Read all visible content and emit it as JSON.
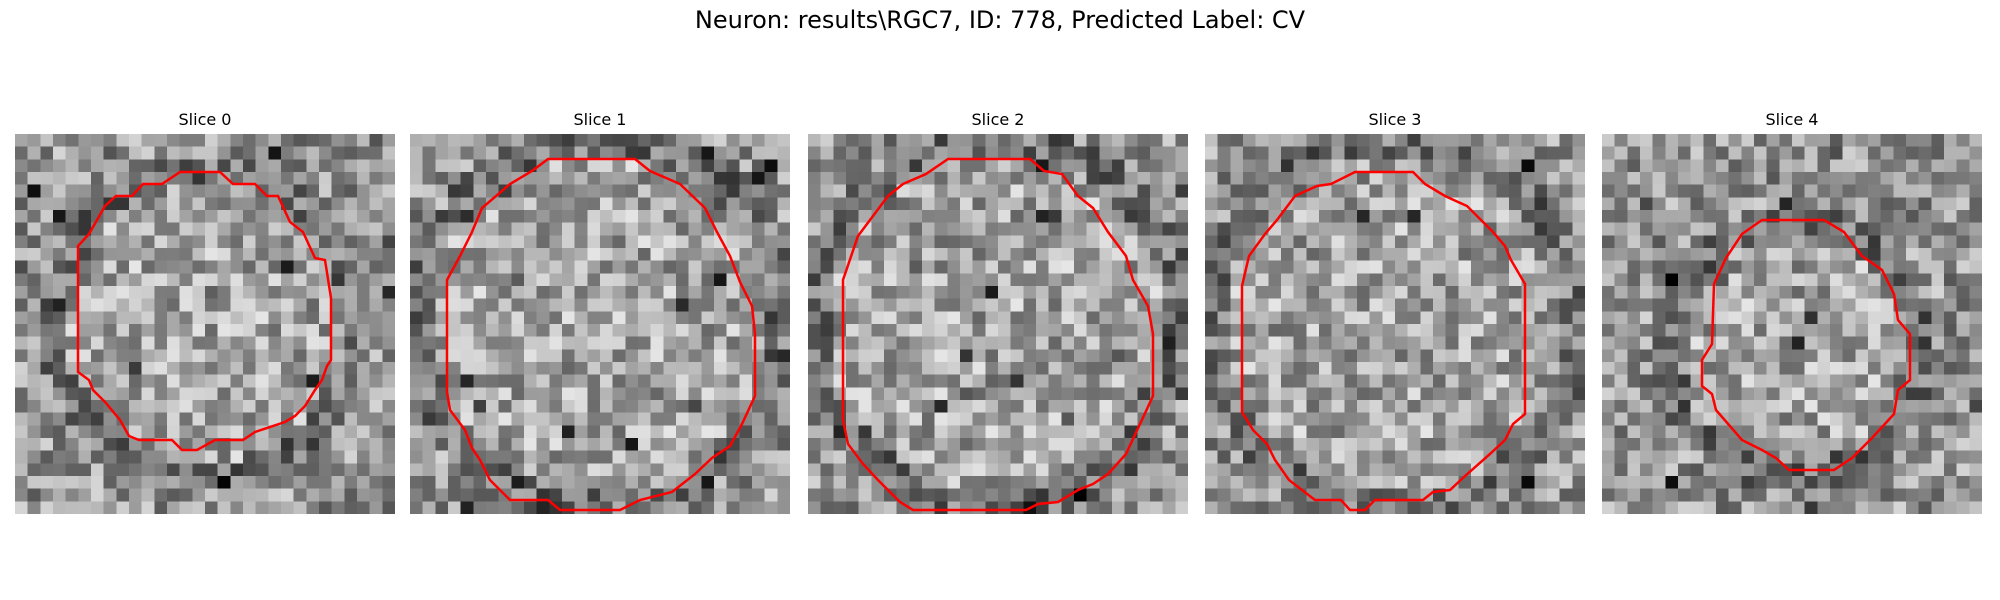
{
  "figure": {
    "title": "Neuron: results\\RGC7, ID: 778, Predicted Label: CV"
  },
  "contour_color": "#ff0000",
  "panels": [
    {
      "title": "Slice 0"
    },
    {
      "title": "Slice 1"
    },
    {
      "title": "Slice 2"
    },
    {
      "title": "Slice 3"
    },
    {
      "title": "Slice 4"
    }
  ]
}
